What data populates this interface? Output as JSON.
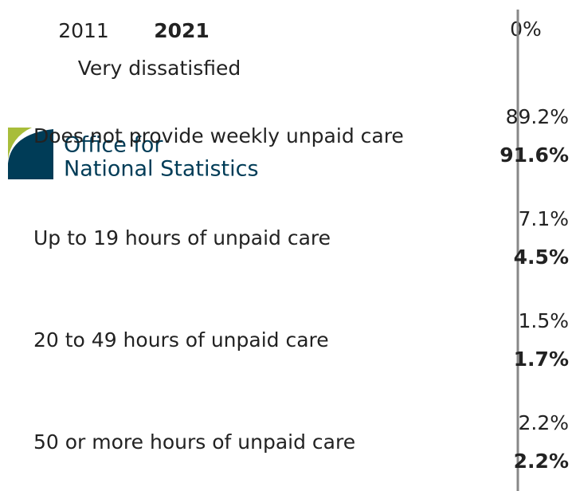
{
  "chart_data": {
    "type": "bar",
    "orientation": "horizontal",
    "subtitle": "Very dissatisfied",
    "categories": [
      "Does not provide weekly unpaid care",
      "Up to 19 hours of unpaid care",
      "20 to 49 hours of unpaid care",
      "50 or more hours of unpaid care"
    ],
    "series": [
      {
        "name": "2011",
        "values": [
          89.2,
          7.1,
          1.5,
          2.2
        ],
        "value_labels": [
          "89.2%",
          "7.1%",
          "1.5%",
          "2.2%"
        ]
      },
      {
        "name": "2021",
        "values": [
          91.6,
          4.5,
          1.7,
          2.2
        ],
        "value_labels": [
          "91.6%",
          "4.5%",
          "1.7%",
          "2.2%"
        ]
      }
    ],
    "xticks": [
      {
        "value": 0,
        "label": "0%"
      }
    ]
  },
  "logo": {
    "line1": "Office for",
    "line2": "National Statistics"
  }
}
